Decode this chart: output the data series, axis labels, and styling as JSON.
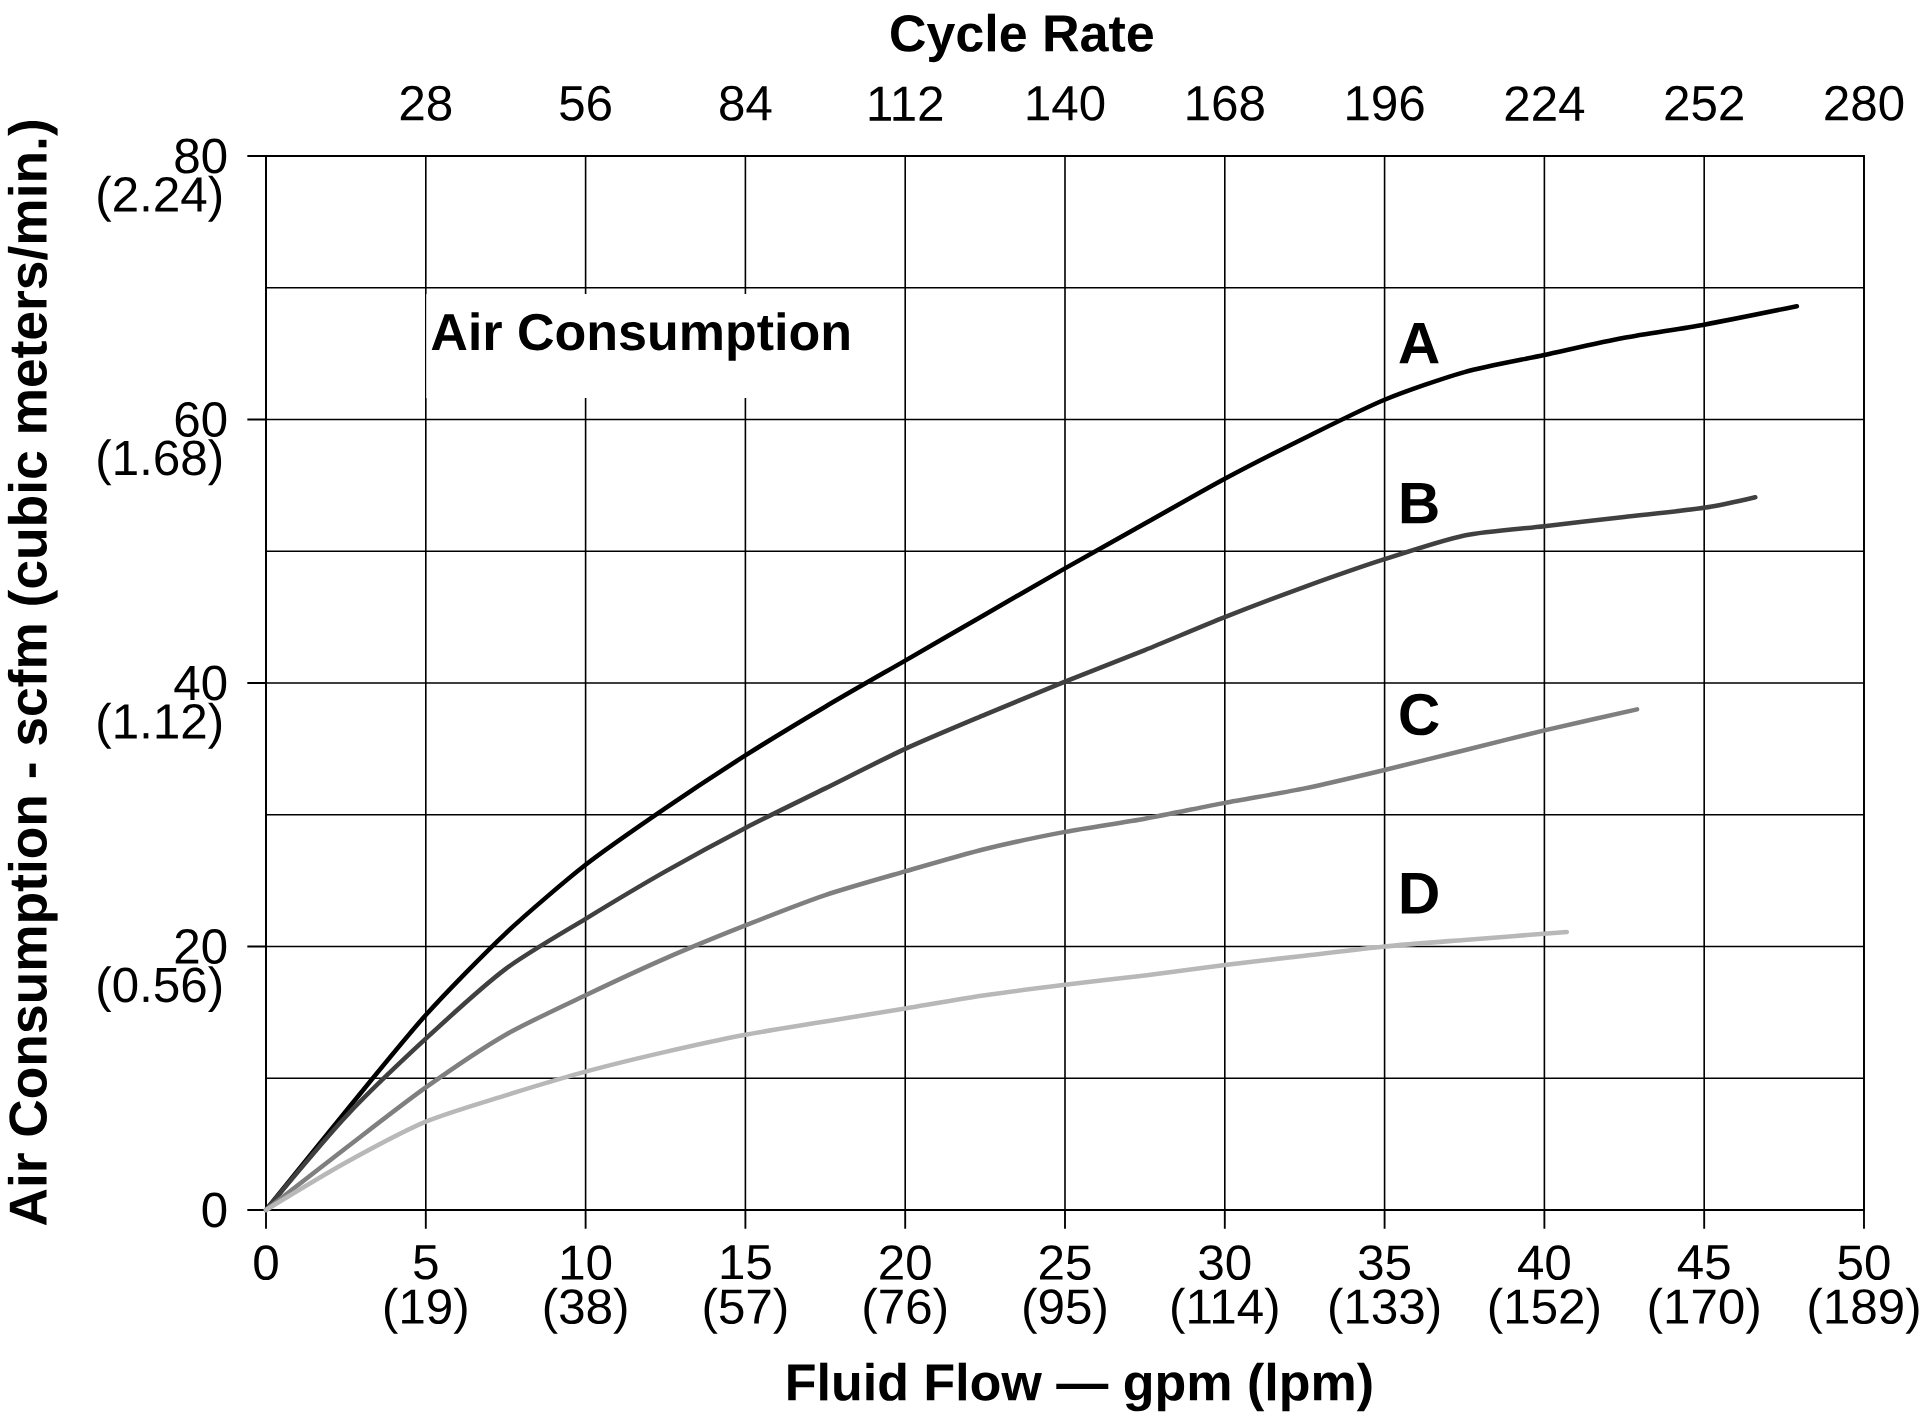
{
  "chart_data": {
    "type": "line",
    "title": "Air Consumption",
    "xlabel": "Fluid Flow — gpm (lpm)",
    "ylabel": "Air Consumption - scfm (cubic meters/min.)",
    "x2label": "Cycle Rate",
    "xlim": [
      0,
      50
    ],
    "xticks": [
      0,
      5,
      10,
      15,
      20,
      25,
      30,
      35,
      40,
      45,
      50
    ],
    "x2lim": [
      0,
      280
    ],
    "x2ticks": [
      28,
      56,
      84,
      112,
      140,
      168,
      196,
      224,
      252,
      280
    ],
    "ylim": [
      0,
      80
    ],
    "yticks": [
      0,
      {
        "value": 10,
        "label": null
      },
      20,
      {
        "value": 30,
        "label": null
      },
      40,
      {
        "value": 50,
        "label": null
      },
      60,
      {
        "value": 70,
        "label": null
      },
      80
    ],
    "annotations": [
      "(19)",
      "(38)",
      "(57)",
      "(76)",
      "(95)",
      "(114)",
      "(133)",
      "(152)",
      "(170)",
      "(189)",
      "(0.56)",
      "(1.12)",
      "(1.68)",
      "(2.24)"
    ],
    "grid": true,
    "series": [
      {
        "name": "A",
        "color": "#000000",
        "x": [
          0,
          2.5,
          5,
          7.5,
          10,
          12.5,
          15,
          17.5,
          20,
          22.5,
          25,
          27.5,
          30,
          32.5,
          35,
          37.5,
          40,
          42.5,
          45,
          47.9
        ],
        "values": [
          0,
          7.5,
          14.8,
          21.0,
          26.2,
          30.5,
          34.5,
          38.2,
          41.7,
          45.2,
          48.7,
          52.1,
          55.5,
          58.6,
          61.5,
          63.6,
          64.9,
          66.2,
          67.2,
          68.6
        ]
      },
      {
        "name": "B",
        "color": "#404040",
        "x": [
          0,
          2.5,
          5,
          7.5,
          10,
          12.5,
          15,
          17.5,
          20,
          22.5,
          25,
          27.5,
          30,
          32.5,
          35,
          37.5,
          40,
          42.5,
          45,
          46.6
        ],
        "values": [
          0,
          7.1,
          13.0,
          18.3,
          22.1,
          25.7,
          29.0,
          32.0,
          35.0,
          37.6,
          40.1,
          42.5,
          45.0,
          47.3,
          49.4,
          51.2,
          51.9,
          52.6,
          53.3,
          54.1
        ]
      },
      {
        "name": "C",
        "color": "#7f7f7f",
        "x": [
          0,
          2.5,
          5,
          7.5,
          10,
          12.5,
          15,
          17.5,
          20,
          22.5,
          25,
          27.5,
          30,
          32.5,
          35,
          37.5,
          40,
          42.9
        ],
        "values": [
          0,
          4.7,
          9.3,
          13.3,
          16.3,
          19.1,
          21.6,
          23.9,
          25.7,
          27.4,
          28.7,
          29.7,
          30.9,
          32.0,
          33.4,
          34.9,
          36.4,
          38.0
        ]
      },
      {
        "name": "D",
        "color": "#b8b8b8",
        "x": [
          0,
          2.5,
          5,
          7.5,
          10,
          12.5,
          15,
          17.5,
          20,
          22.5,
          25,
          27.5,
          30,
          32.5,
          35,
          37.5,
          40.7
        ],
        "values": [
          0,
          3.6,
          6.7,
          8.7,
          10.5,
          12.0,
          13.3,
          14.3,
          15.3,
          16.3,
          17.1,
          17.8,
          18.6,
          19.3,
          20.0,
          20.5,
          21.1
        ]
      }
    ]
  }
}
